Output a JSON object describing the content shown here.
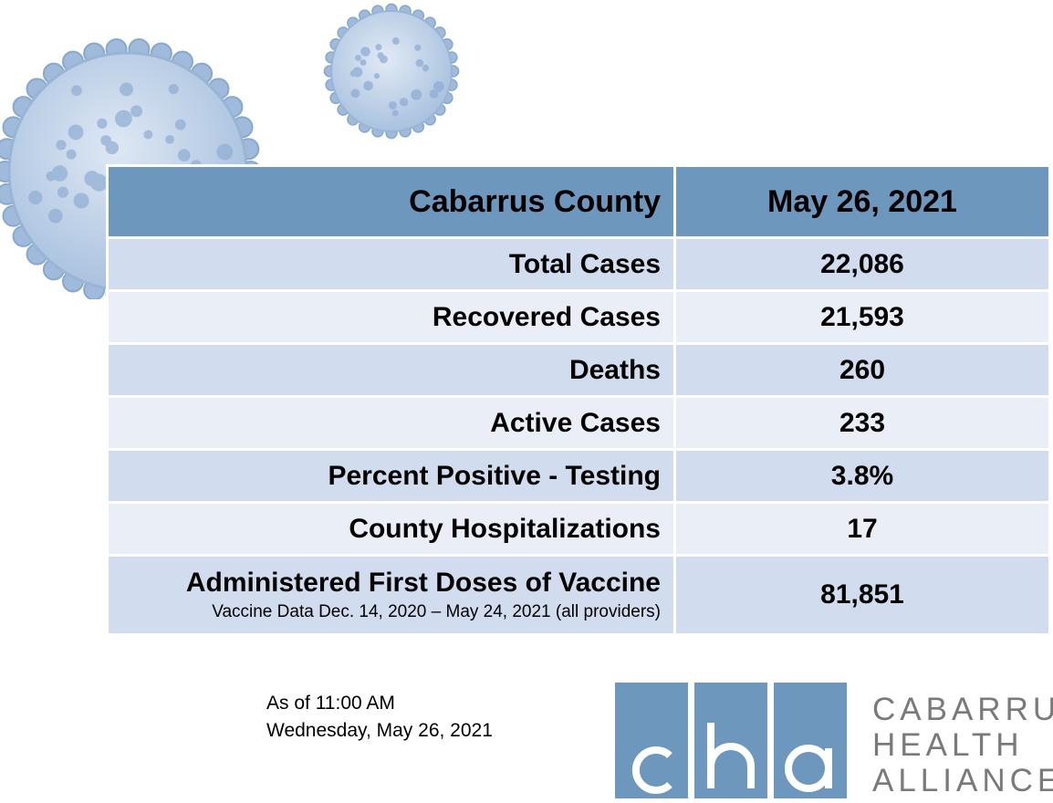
{
  "table": {
    "header": {
      "label": "Cabarrus County",
      "date": "May 26, 2021"
    },
    "rows": [
      {
        "label": "Total Cases",
        "value": "22,086"
      },
      {
        "label": "Recovered Cases",
        "value": "21,593"
      },
      {
        "label": "Deaths",
        "value": "260"
      },
      {
        "label": "Active Cases",
        "value": "233"
      },
      {
        "label": "Percent Positive - Testing",
        "value": "3.8%"
      },
      {
        "label": "County Hospitalizations",
        "value": "17"
      },
      {
        "label": "Administered First Doses of Vaccine",
        "sublabel": "Vaccine Data Dec. 14, 2020 – May 24, 2021 (all providers)",
        "value": "81,851"
      }
    ]
  },
  "footer": {
    "asof_line1": "As of 11:00 AM",
    "asof_line2": "Wednesday, May 26, 2021"
  },
  "logo": {
    "letters": [
      "c",
      "h",
      "a"
    ],
    "text_line1": "CABARRUS",
    "text_line2": "HEALTH",
    "text_line3": "ALLIANCE"
  },
  "colors": {
    "accent": "#6e97bd",
    "row_dark": "#d1dcef",
    "row_light": "#e9eef7",
    "logo_text": "#7a7a7a"
  },
  "icons": [
    "virus-icon"
  ]
}
